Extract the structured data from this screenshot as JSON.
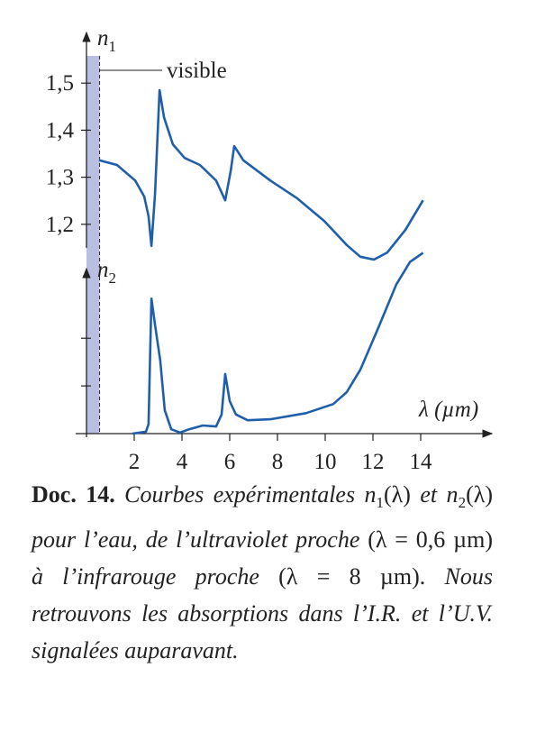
{
  "chart_data": [
    {
      "type": "line",
      "ylabel": "n",
      "ylabel_sub": "1",
      "x": [
        0.53,
        1.28,
        2.04,
        2.42,
        2.6,
        2.72,
        2.87,
        3.06,
        3.25,
        3.62,
        4.11,
        4.75,
        5.43,
        5.81,
        6.04,
        6.19,
        6.57,
        7.7,
        8.83,
        9.96,
        10.9,
        11.47,
        12.04,
        12.6,
        13.36,
        14.1
      ],
      "series": [
        {
          "color": "#1f5eab",
          "values": [
            1.336,
            1.326,
            1.293,
            1.259,
            1.217,
            1.154,
            1.265,
            1.485,
            1.427,
            1.37,
            1.341,
            1.326,
            1.293,
            1.251,
            1.313,
            1.366,
            1.336,
            1.293,
            1.255,
            1.207,
            1.156,
            1.131,
            1.125,
            1.14,
            1.188,
            1.251
          ]
        }
      ],
      "xlim": [
        0,
        17
      ],
      "ylim": [
        1.1,
        1.6
      ],
      "yticks": [
        {
          "value": 1.5,
          "label": "1,5"
        },
        {
          "value": 1.4,
          "label": "1,4"
        },
        {
          "value": 1.3,
          "label": "1,3"
        },
        {
          "value": 1.2,
          "label": "1,2"
        }
      ],
      "visible": {
        "label": "visible",
        "range": [
          0,
          0.55
        ],
        "color": "#b9bfe0"
      }
    },
    {
      "type": "line",
      "ylabel": "n",
      "ylabel_sub": "2",
      "xlabel": "λ (µm)",
      "x": [
        1.92,
        2.49,
        2.6,
        2.72,
        2.87,
        3.09,
        3.28,
        3.55,
        3.92,
        4.3,
        4.87,
        5.43,
        5.66,
        5.81,
        6.0,
        6.26,
        6.75,
        7.7,
        9.2,
        10.34,
        10.9,
        11.47,
        12.2,
        12.98,
        13.55,
        14.1
      ],
      "series": [
        {
          "color": "#1f5eab",
          "values": [
            0,
            0.04,
            0.2,
            2.83,
            2.28,
            1.53,
            0.49,
            0.09,
            0.02,
            0.09,
            0.17,
            0.15,
            0.4,
            1.25,
            0.68,
            0.4,
            0.28,
            0.3,
            0.43,
            0.62,
            0.87,
            1.34,
            2.19,
            3.13,
            3.6,
            3.79
          ]
        }
      ],
      "xlim": [
        0,
        17
      ],
      "xticks": [
        2,
        4,
        6,
        8,
        10,
        12,
        14
      ],
      "ylim": [
        0,
        3.8
      ],
      "yticks": [
        1,
        2
      ]
    }
  ],
  "caption": {
    "label": "Doc. 14.",
    "parts": [
      "Courbes expérimentales n",
      "1",
      "(λ)",
      "et n",
      "2",
      "(λ)",
      "pour l’eau, de l’ultraviolet proche",
      "(λ = 0,6 µm)",
      "à l’infrarouge proche",
      "(λ = 8 µm).",
      "Nous retrouvons les absorptions dans l’I.R. et l’U.V. signalées auparavant."
    ]
  }
}
